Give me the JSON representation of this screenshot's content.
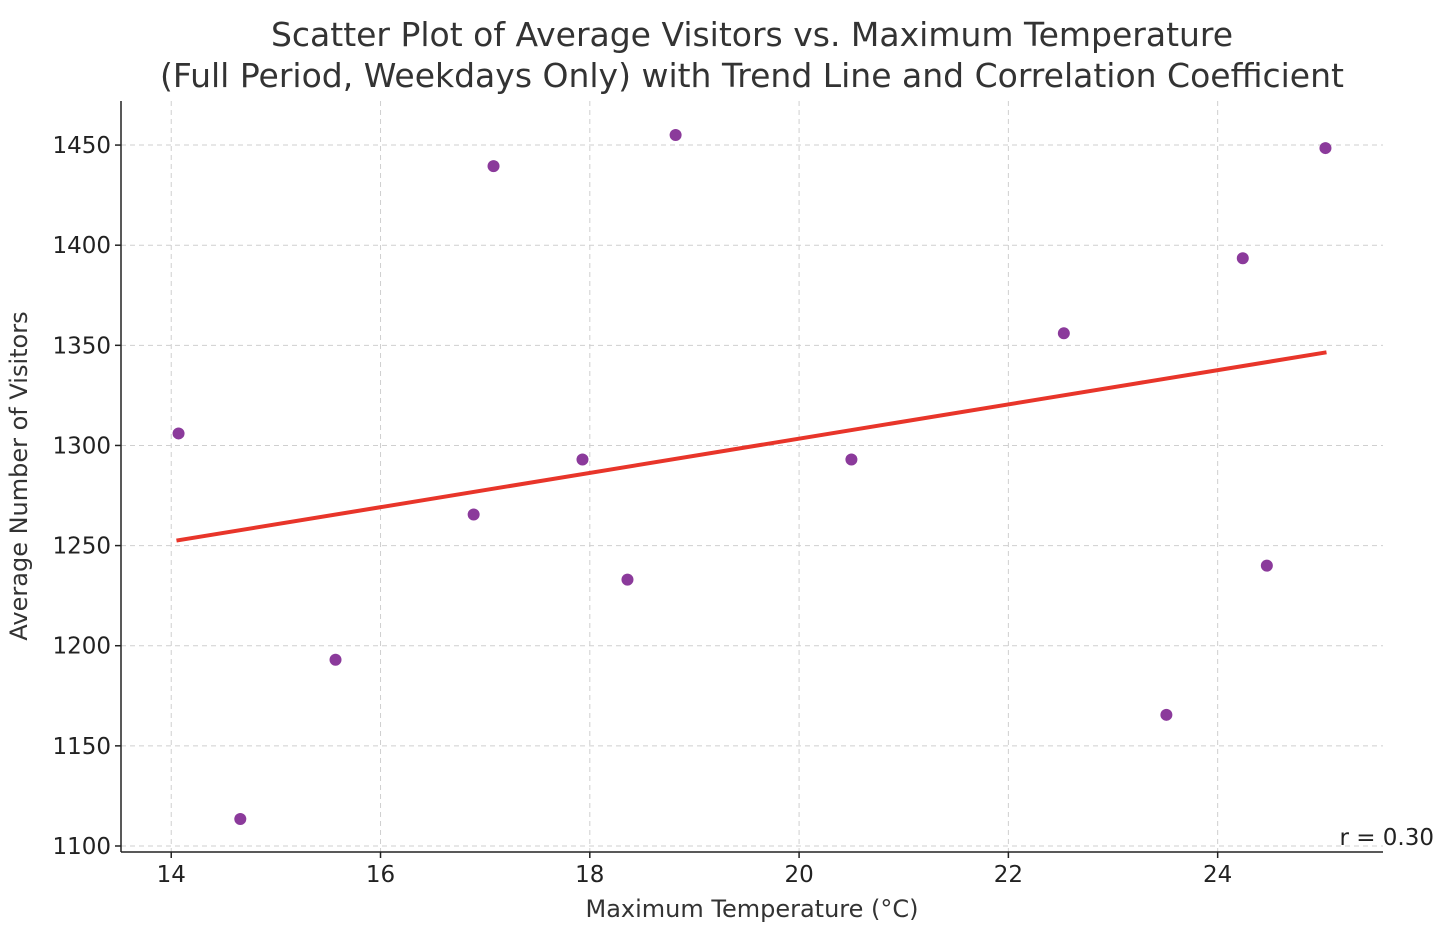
{
  "chart_data": {
    "type": "scatter",
    "title": "Scatter Plot of Average Visitors vs. Maximum Temperature",
    "subtitle": "(Full Period, Weekdays Only) with Trend Line and Correlation Coefficient",
    "xlabel": "Maximum Temperature (°C)",
    "ylabel": "Average Number of Visitors",
    "xlim": [
      13.52,
      25.58
    ],
    "ylim": [
      1097,
      1472
    ],
    "xticks": [
      14,
      16,
      18,
      20,
      22,
      24
    ],
    "yticks": [
      1100,
      1150,
      1200,
      1250,
      1300,
      1350,
      1400,
      1450
    ],
    "grid": true,
    "points": [
      {
        "x": 14.07,
        "y": 1306
      },
      {
        "x": 14.66,
        "y": 1113.5
      },
      {
        "x": 15.57,
        "y": 1193
      },
      {
        "x": 16.89,
        "y": 1265.5
      },
      {
        "x": 17.08,
        "y": 1439.5
      },
      {
        "x": 17.93,
        "y": 1293
      },
      {
        "x": 18.36,
        "y": 1233
      },
      {
        "x": 18.82,
        "y": 1455
      },
      {
        "x": 20.5,
        "y": 1293
      },
      {
        "x": 22.53,
        "y": 1356
      },
      {
        "x": 23.51,
        "y": 1165.5
      },
      {
        "x": 24.24,
        "y": 1393.5
      },
      {
        "x": 24.47,
        "y": 1240
      },
      {
        "x": 25.03,
        "y": 1448.5
      }
    ],
    "trend_line": {
      "x": [
        14.05,
        25.04
      ],
      "y": [
        1252.5,
        1346.5
      ]
    },
    "annotation": "r = 0.30",
    "colors": {
      "points": "#8b3a9b",
      "trend": "#e8352a"
    }
  }
}
